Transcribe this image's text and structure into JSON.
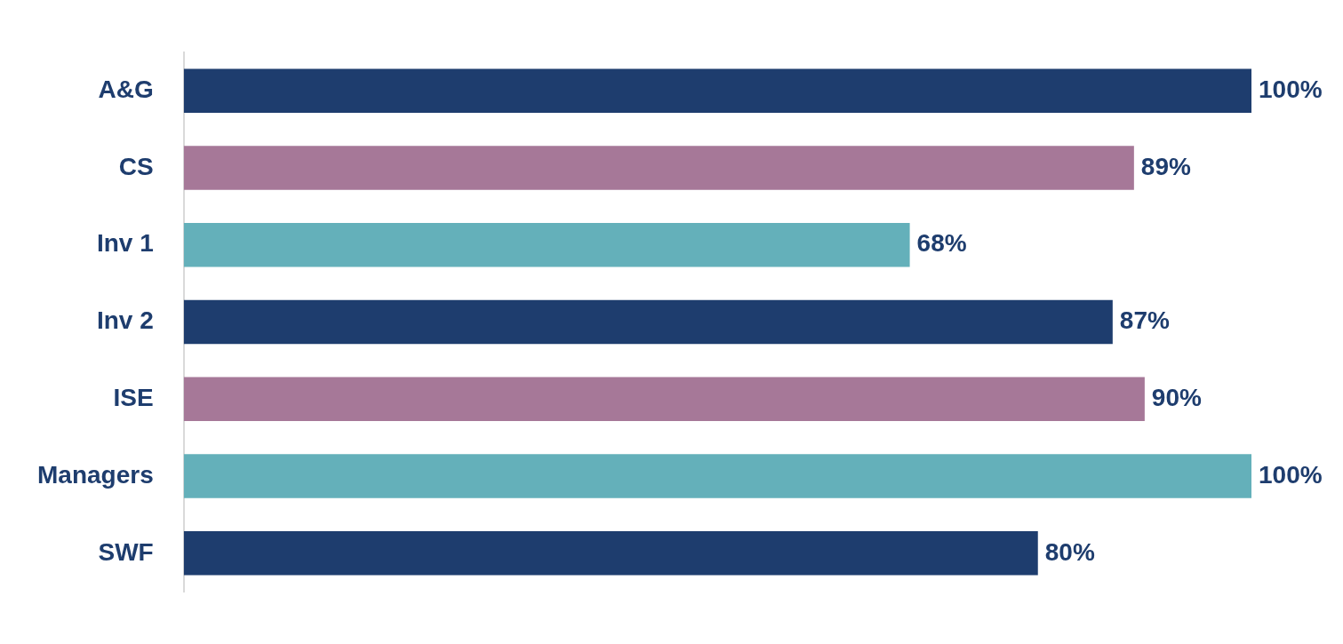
{
  "chart_data": {
    "type": "bar",
    "orientation": "horizontal",
    "categories": [
      "A&G",
      "CS",
      "Inv 1",
      "Inv 2",
      "ISE",
      "Managers",
      "SWF"
    ],
    "values": [
      100,
      89,
      68,
      87,
      90,
      100,
      80
    ],
    "colors": [
      "#1e3d6e",
      "#a67898",
      "#64b0ba",
      "#1e3d6e",
      "#a67898",
      "#64b0ba",
      "#1e3d6e"
    ],
    "value_labels": [
      "100%",
      "89%",
      "68%",
      "87%",
      "90%",
      "100%",
      "80%"
    ],
    "xlim": [
      0,
      100
    ],
    "tick_labels": "y",
    "legend": false
  }
}
